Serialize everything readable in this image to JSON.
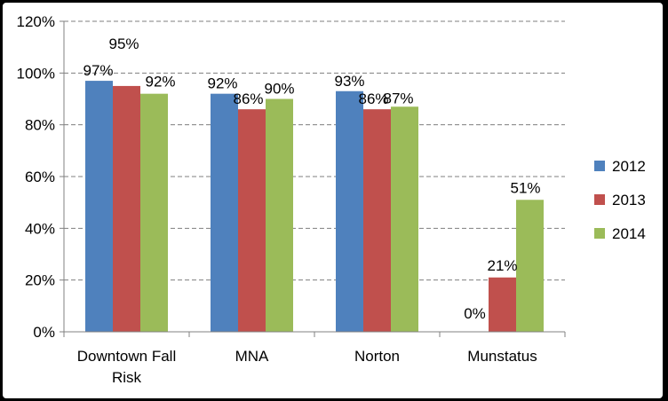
{
  "chart_data": {
    "type": "bar",
    "categories": [
      "Downtown Fall Risk",
      "MNA",
      "Norton",
      "Munstatus"
    ],
    "series": [
      {
        "name": "2012",
        "values": [
          97,
          92,
          93,
          0
        ],
        "color": "#4F81BD"
      },
      {
        "name": "2013",
        "values": [
          95,
          86,
          86,
          21
        ],
        "color": "#C0504D"
      },
      {
        "name": "2014",
        "values": [
          92,
          90,
          87,
          51
        ],
        "color": "#9BBB59"
      }
    ],
    "data_labels": [
      [
        "97%",
        "92%",
        "93%",
        ""
      ],
      [
        "95%",
        "86%",
        "86%",
        "21%"
      ],
      [
        "92%",
        "90%",
        "87%",
        "51%"
      ]
    ],
    "extra_labels": [
      "0%"
    ],
    "y_ticks": [
      "0%",
      "20%",
      "40%",
      "60%",
      "80%",
      "100%",
      "120%"
    ],
    "ylim": [
      0,
      120
    ],
    "unit": "%",
    "grid": true,
    "legend_position": "right",
    "title": "",
    "xlabel": "",
    "ylabel": ""
  }
}
